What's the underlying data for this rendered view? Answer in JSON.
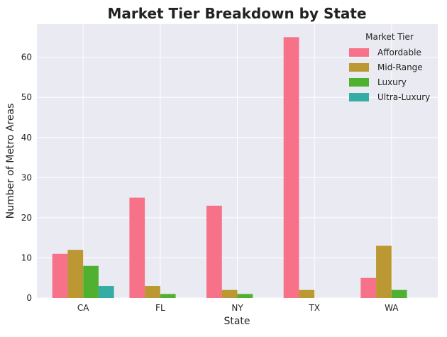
{
  "chart_data": {
    "type": "bar",
    "title": "Market Tier Breakdown by State",
    "xlabel": "State",
    "ylabel": "Number of Metro Areas",
    "categories": [
      "CA",
      "FL",
      "NY",
      "TX",
      "WA"
    ],
    "series": [
      {
        "name": "Affordable",
        "color": "#f77189",
        "values": [
          11,
          25,
          23,
          65,
          5
        ]
      },
      {
        "name": "Mid-Range",
        "color": "#bb9832",
        "values": [
          12,
          3,
          2,
          2,
          13
        ]
      },
      {
        "name": "Luxury",
        "color": "#50b131",
        "values": [
          8,
          1,
          1,
          0,
          2
        ]
      },
      {
        "name": "Ultra-Luxury",
        "color": "#36ada4",
        "values": [
          3,
          0,
          0,
          0,
          0
        ]
      }
    ],
    "yticks": [
      0,
      10,
      20,
      30,
      40,
      50,
      60
    ],
    "ylim": [
      0,
      68.25
    ],
    "grid": true,
    "legend": {
      "title": "Market Tier",
      "position": "top-right"
    },
    "background": "#eaeaf2",
    "grid_color": "#ffffff"
  }
}
